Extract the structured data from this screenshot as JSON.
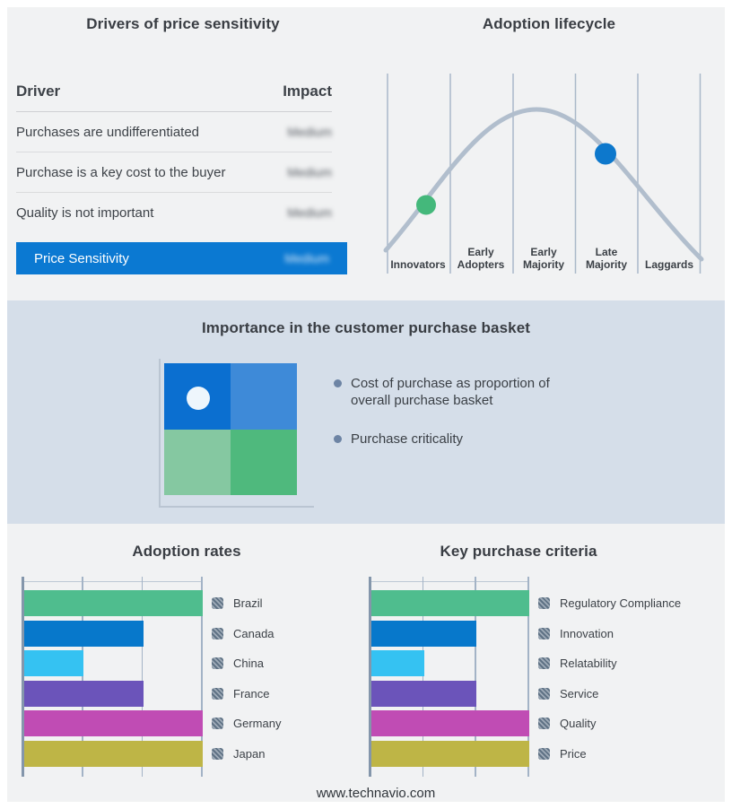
{
  "page": {
    "background": "#f1f2f3",
    "band_background": "#d5dee9",
    "footer_url": "www.technavio.com"
  },
  "drivers_panel": {
    "title": "Drivers of price sensitivity",
    "columns": [
      "Driver",
      "Impact"
    ],
    "rows": [
      {
        "driver": "Purchases are undifferentiated",
        "impact": "Medium",
        "impact_obscured": true
      },
      {
        "driver": "Purchase is a key cost to the buyer",
        "impact": "Medium",
        "impact_obscured": true
      },
      {
        "driver": "Quality is not important",
        "impact": "Medium",
        "impact_obscured": true
      }
    ],
    "summary_row": {
      "label": "Price Sensitivity",
      "impact": "Medium",
      "impact_obscured": true,
      "color": "#0b79d2"
    }
  },
  "lifecycle_panel": {
    "title": "Adoption lifecycle",
    "stages": [
      "Innovators",
      "Early Adopters",
      "Early Majority",
      "Late Majority",
      "Laggards"
    ],
    "curve_color": "#b1becd",
    "markers": [
      {
        "stage": "Innovators",
        "color": "#44b87b"
      },
      {
        "stage": "Late Majority",
        "color": "#0d78cc"
      }
    ]
  },
  "basket_panel": {
    "title": "Importance in the customer purchase basket",
    "bullets": [
      "Cost of purchase as proportion of overall purchase basket",
      "Purchase criticality"
    ],
    "matrix": {
      "quadrant_colors": [
        "#0b6fd0",
        "#3e8ad8",
        "#85c8a1",
        "#4fb97d"
      ],
      "dot_color": "#eef6fc",
      "dot_quadrant": "top-left"
    }
  },
  "chart_data": [
    {
      "id": "lifecycle-curve",
      "type": "line",
      "title": "Adoption lifecycle",
      "x_categories": [
        "Innovators",
        "Early Adopters",
        "Early Majority",
        "Late Majority",
        "Laggards"
      ],
      "shape": "bell-curve",
      "annotations": [
        {
          "marker": "green-dot",
          "position": "rising slope, Innovators segment",
          "color": "#44b87b"
        },
        {
          "marker": "blue-dot",
          "position": "falling slope, Late Majority segment",
          "color": "#0d78cc"
        }
      ],
      "grid": "vertical segment separators only",
      "value_axis_labels_visible": false
    },
    {
      "id": "adoption-rates",
      "type": "bar",
      "orientation": "horizontal",
      "title": "Adoption rates",
      "categories": [
        "Brazil",
        "Canada",
        "China",
        "France",
        "Germany",
        "Japan"
      ],
      "values": [
        100,
        66.7,
        33.3,
        66.7,
        100,
        100
      ],
      "colors": [
        "#4fbd8e",
        "#0778cb",
        "#35c2f2",
        "#6b54ba",
        "#c04cb4",
        "#beb546"
      ],
      "xlim": [
        0,
        100
      ],
      "gridlines": [
        0,
        33.3,
        66.7,
        100
      ],
      "value_axis_labels_visible": false,
      "legend_position": "right",
      "legend_swatch_style": "hatched-redacted"
    },
    {
      "id": "key-criteria",
      "type": "bar",
      "orientation": "horizontal",
      "title": "Key purchase criteria",
      "categories": [
        "Regulatory Compliance",
        "Innovation",
        "Relatability",
        "Service",
        "Quality",
        "Price"
      ],
      "values": [
        100,
        66.7,
        33.3,
        66.7,
        100,
        100
      ],
      "colors": [
        "#4fbd8e",
        "#0778cb",
        "#35c2f2",
        "#6b54ba",
        "#c04cb4",
        "#beb546"
      ],
      "xlim": [
        0,
        100
      ],
      "gridlines": [
        0,
        33.3,
        66.7,
        100
      ],
      "value_axis_labels_visible": false,
      "legend_position": "right",
      "legend_swatch_style": "hatched-redacted"
    }
  ]
}
